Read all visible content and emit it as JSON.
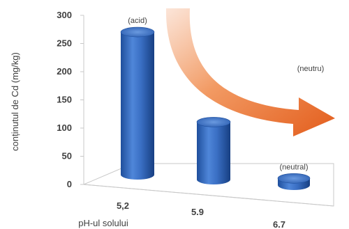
{
  "chart_data": {
    "type": "bar",
    "style": "3d-cylinder",
    "ylabel": "conținutul de Cd (mg/kg)",
    "xlabel": "pH-ul solului",
    "ylim": [
      0,
      300
    ],
    "yticks": [
      "0",
      "50",
      "100",
      "150",
      "200",
      "250",
      "300"
    ],
    "categories": [
      "5,2",
      "5.9",
      "6.7"
    ],
    "values": [
      253,
      102,
      12
    ],
    "bar_labels": [
      "(acid)",
      "",
      "(neutral)"
    ],
    "annotations": [
      "(neutru)"
    ],
    "bar_color": "#3a6fc4",
    "arrow_color": "#e8692a",
    "grid": false
  }
}
